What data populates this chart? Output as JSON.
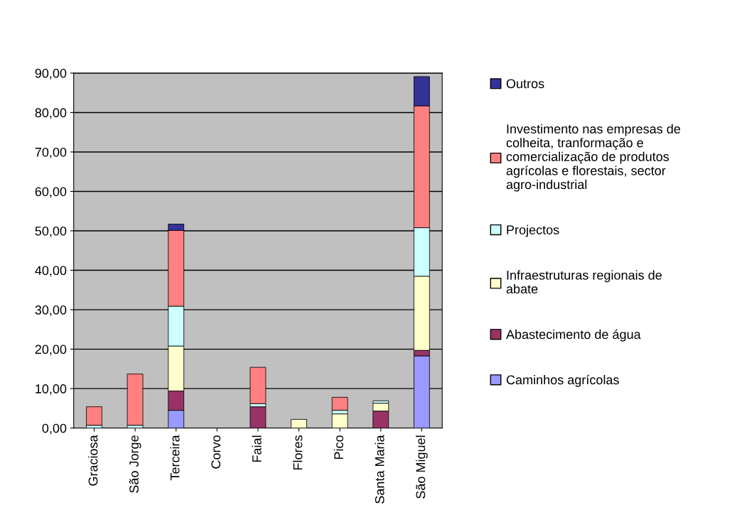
{
  "chart_data": {
    "type": "bar",
    "stacked": true,
    "categories": [
      "Graciosa",
      "São Jorge",
      "Terceira",
      "Corvo",
      "Faial",
      "Flores",
      "Pico",
      "Santa Maria",
      "São Miguel"
    ],
    "series": [
      {
        "name": "Caminhos agrícolas",
        "color": "#9999ff",
        "values": [
          0,
          0,
          4.5,
          0,
          0,
          0,
          0,
          0,
          18.3
        ]
      },
      {
        "name": "Abastecimento de água",
        "color": "#993366",
        "values": [
          0,
          0,
          4.9,
          0,
          5.4,
          0,
          0,
          4.3,
          1.4
        ]
      },
      {
        "name": "Infraestruturas regionais de\nabate",
        "color": "#ffffcc",
        "values": [
          0,
          0,
          11.4,
          0,
          0,
          2.2,
          3.6,
          2.0,
          18.8
        ]
      },
      {
        "name": "Projectos",
        "color": "#ccffff",
        "values": [
          0.7,
          0.7,
          10.1,
          0,
          0.8,
          0,
          0.9,
          0.6,
          12.3
        ]
      },
      {
        "name": "Investimento nas empresas de\ncolheita, tranformação e\ncomercialização de produtos\nagrícolas e florestais, sector\nagro-industrial",
        "color": "#ff8080",
        "values": [
          4.7,
          13.0,
          19.2,
          0,
          9.2,
          0,
          3.3,
          0,
          30.9
        ]
      },
      {
        "name": "Outros",
        "color": "#333399",
        "values": [
          0,
          0,
          1.6,
          0,
          0,
          0,
          0,
          0,
          7.4
        ]
      }
    ],
    "ylim": [
      0,
      90
    ],
    "yticks": [
      {
        "value": 0,
        "label": "0,00"
      },
      {
        "value": 10,
        "label": "10,00"
      },
      {
        "value": 20,
        "label": "20,00"
      },
      {
        "value": 30,
        "label": "30,00"
      },
      {
        "value": 40,
        "label": "40,00"
      },
      {
        "value": 50,
        "label": "50,00"
      },
      {
        "value": 60,
        "label": "60,00"
      },
      {
        "value": 70,
        "label": "70,00"
      },
      {
        "value": 80,
        "label": "80,00"
      },
      {
        "value": 90,
        "label": "90,00"
      }
    ],
    "grid": "y",
    "legend": "right"
  }
}
